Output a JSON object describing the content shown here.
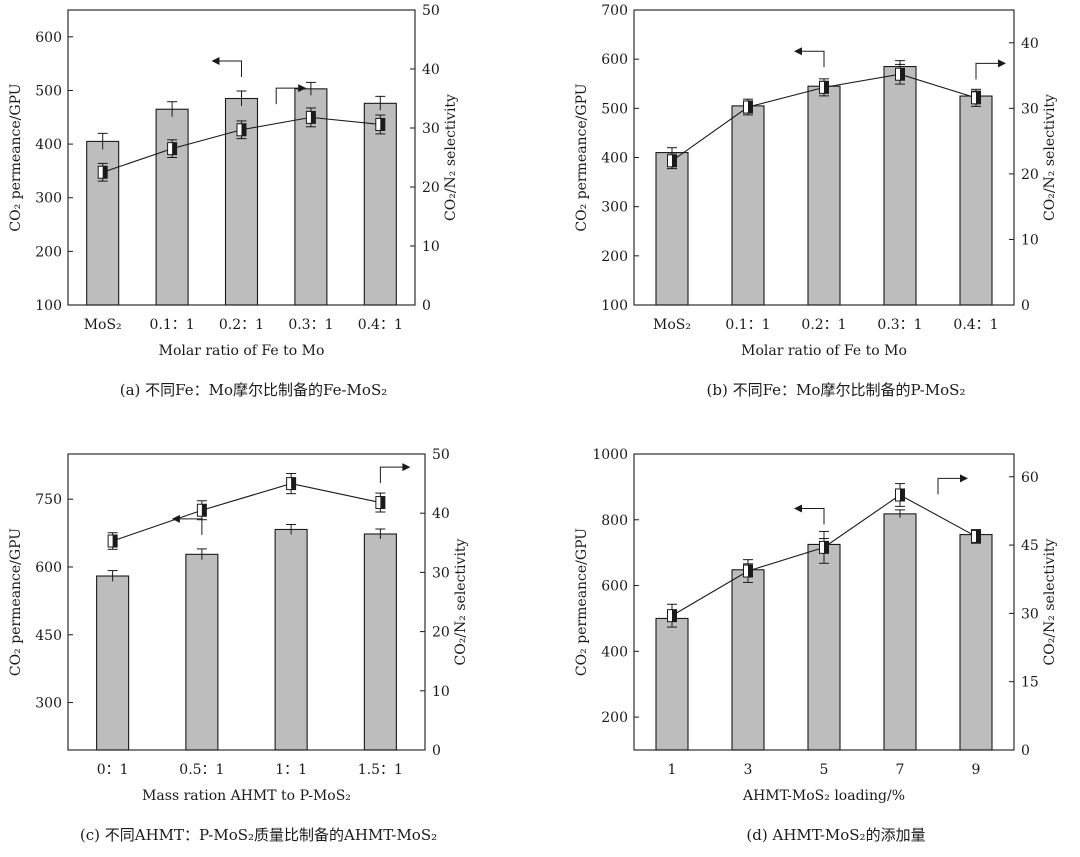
{
  "chart_data": [
    {
      "type": "bar+line",
      "panel": "a",
      "caption": "(a) 不同Fe：Mo摩尔比制备的Fe-MoS₂",
      "xlabel": "Molar ratio of Fe to Mo",
      "ylabel": "CO₂ permeance/GPU",
      "y2label": "CO₂/N₂ selectivity",
      "categories": [
        "MoS₂",
        "0.1：1",
        "0.2：1",
        "0.3：1",
        "0.4：1"
      ],
      "series": [
        {
          "name": "CO₂ permeance",
          "axis": "left",
          "kind": "bar",
          "values": [
            405,
            465,
            485,
            503,
            476
          ],
          "errors": [
            15,
            14,
            14,
            12,
            13
          ]
        },
        {
          "name": "CO₂/N₂ selectivity",
          "axis": "right",
          "kind": "line",
          "values": [
            22.5,
            26.5,
            29.7,
            31.8,
            30.6
          ],
          "errors": [
            1.5,
            1.5,
            1.5,
            1.6,
            1.6
          ]
        }
      ],
      "ylim": [
        100,
        650
      ],
      "yticks": [
        100,
        200,
        300,
        400,
        500,
        600
      ],
      "y2lim": [
        0,
        50
      ],
      "y2ticks": [
        0,
        10,
        20,
        30,
        40,
        50
      ],
      "annotations": [
        {
          "type": "arrow",
          "points_to": "left",
          "near_index": 2
        },
        {
          "type": "arrow",
          "points_to": "right",
          "near_index": 2.5
        }
      ]
    },
    {
      "type": "bar+line",
      "panel": "b",
      "caption": "(b) 不同Fe：Mo摩尔比制备的P-MoS₂",
      "xlabel": "Molar ratio of Fe to Mo",
      "ylabel": "CO₂ permeance/GPU",
      "y2label": "CO₂/N₂ selectivity",
      "categories": [
        "MoS₂",
        "0.1：1",
        "0.2：1",
        "0.3：1",
        "0.4：1"
      ],
      "series": [
        {
          "name": "CO₂ permeance",
          "axis": "left",
          "kind": "bar",
          "values": [
            410,
            505,
            545,
            585,
            525
          ],
          "errors": [
            10,
            10,
            10,
            12,
            10
          ]
        },
        {
          "name": "CO₂/N₂ selectivity",
          "axis": "right",
          "kind": "line",
          "values": [
            22.0,
            30.2,
            33.2,
            35.2,
            31.6
          ],
          "errors": [
            1.2,
            1.2,
            1.3,
            1.5,
            1.3
          ]
        }
      ],
      "ylim": [
        100,
        700
      ],
      "yticks": [
        100,
        200,
        300,
        400,
        500,
        600,
        700
      ],
      "y2lim": [
        0,
        45
      ],
      "y2ticks": [
        0,
        10,
        20,
        30,
        40
      ],
      "annotations": [
        {
          "type": "arrow",
          "points_to": "left",
          "near_index": 2
        },
        {
          "type": "arrow",
          "points_to": "right",
          "near_index": 4
        }
      ]
    },
    {
      "type": "bar+line",
      "panel": "c",
      "caption": "(c) 不同AHMT：P-MoS₂质量比制备的AHMT-MoS₂",
      "xlabel": "Mass ration AHMT to P-MoS₂",
      "ylabel": "CO₂ permeance/GPU",
      "y2label": "CO₂/N₂ selectivity",
      "categories": [
        "0：1",
        "0.5：1",
        "1：1",
        "1.5：1"
      ],
      "series": [
        {
          "name": "CO₂ permeance",
          "axis": "left",
          "kind": "bar",
          "values": [
            580,
            628,
            683,
            673
          ],
          "errors": [
            12,
            12,
            11,
            11
          ]
        },
        {
          "name": "CO₂/N₂ selectivity",
          "axis": "right",
          "kind": "line",
          "values": [
            35.3,
            40.5,
            45.0,
            41.8
          ],
          "errors": [
            1.4,
            1.6,
            1.7,
            1.6
          ]
        }
      ],
      "ylim": [
        195,
        850
      ],
      "yticks": [
        300,
        450,
        600,
        750
      ],
      "y2lim": [
        0,
        50
      ],
      "y2ticks": [
        0,
        10,
        20,
        30,
        40,
        50
      ],
      "annotations": [
        {
          "type": "arrow",
          "points_to": "left",
          "near_index": 1
        },
        {
          "type": "arrow",
          "points_to": "right",
          "near_index": 3
        }
      ]
    },
    {
      "type": "bar+line",
      "panel": "d",
      "caption": "(d) AHMT-MoS₂的添加量",
      "xlabel": "AHMT-MoS₂ loading/%",
      "ylabel": "CO₂ permeance/GPU",
      "y2label": "CO₂/N₂ selectivity",
      "categories": [
        "1",
        "3",
        "5",
        "7",
        "9"
      ],
      "series": [
        {
          "name": "CO₂ permeance",
          "axis": "left",
          "kind": "bar",
          "values": [
            500,
            648,
            725,
            818,
            755
          ],
          "errors": [
            18,
            18,
            18,
            12,
            10
          ]
        },
        {
          "name": "CO₂/N₂ selectivity",
          "axis": "right",
          "kind": "line",
          "values": [
            29.5,
            39.3,
            44.5,
            56.0,
            46.9
          ],
          "errors": [
            2.5,
            2.5,
            3.5,
            2.5,
            1.5
          ]
        }
      ],
      "ylim": [
        100,
        1000
      ],
      "yticks": [
        200,
        400,
        600,
        800,
        1000
      ],
      "y2lim": [
        0,
        65
      ],
      "y2ticks": [
        0,
        15,
        30,
        45,
        60
      ],
      "annotations": [
        {
          "type": "arrow",
          "points_to": "left",
          "near_index": 2
        },
        {
          "type": "arrow",
          "points_to": "right",
          "near_index": 3.5
        }
      ]
    }
  ]
}
